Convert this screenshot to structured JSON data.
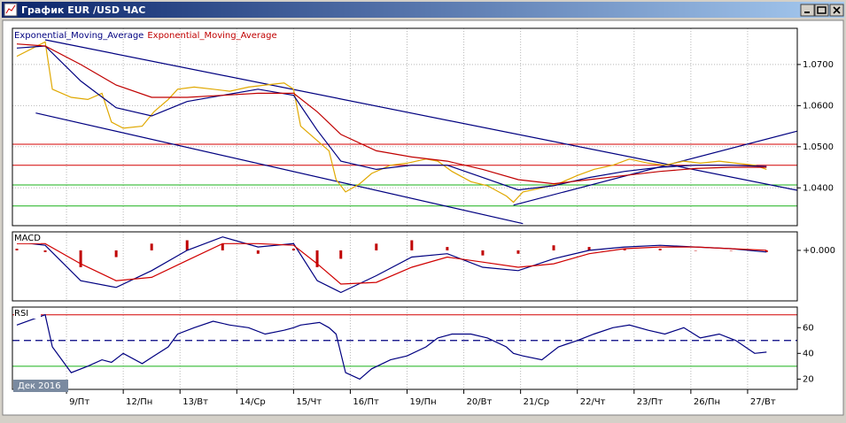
{
  "window": {
    "title": "График EUR /USD ЧАС"
  },
  "chart_data": [
    {
      "type": "line",
      "xlim": [
        0,
        333
      ],
      "ylim": [
        1.0308,
        1.0788
      ],
      "grid": true,
      "yticks": [
        {
          "value": 1.07,
          "label": "1.0700"
        },
        {
          "value": 1.06,
          "label": "1.0600"
        },
        {
          "value": 1.05,
          "label": "1.0500"
        },
        {
          "value": 1.04,
          "label": "1.0400"
        }
      ],
      "hlines": [
        {
          "value": 1.0506,
          "color": "#d40000"
        },
        {
          "value": 1.0455,
          "color": "#d40000"
        },
        {
          "value": 1.0407,
          "color": "#18b018"
        },
        {
          "value": 1.0356,
          "color": "#18b018"
        }
      ],
      "trendlines": [
        {
          "x": [
            15,
            333
          ],
          "y": [
            1.076,
            1.0394
          ],
          "color": "#000080"
        },
        {
          "x": [
            11,
            217
          ],
          "y": [
            1.0582,
            1.0313
          ],
          "color": "#000080"
        },
        {
          "x": [
            213,
            333
          ],
          "y": [
            1.0358,
            1.0538
          ],
          "color": "#000080"
        }
      ],
      "series": [
        {
          "color": "#e0a800",
          "x": [
            3,
            15,
            18,
            26,
            33,
            39,
            43,
            48,
            56,
            61,
            67,
            71,
            78,
            86,
            93,
            101,
            108,
            116,
            120,
            123,
            131,
            135,
            138,
            142,
            148,
            153,
            161,
            168,
            176,
            181,
            187,
            195,
            202,
            210,
            213,
            217,
            225,
            232,
            240,
            247,
            255,
            262,
            270,
            277,
            285,
            292,
            300,
            307,
            315,
            320
          ],
          "values": [
            1.072,
            1.0755,
            1.064,
            1.062,
            1.0615,
            1.063,
            1.056,
            1.0545,
            1.055,
            1.0585,
            1.0615,
            1.064,
            1.0645,
            1.064,
            1.0635,
            1.0645,
            1.065,
            1.0655,
            1.064,
            1.055,
            1.051,
            1.049,
            1.042,
            1.039,
            1.041,
            1.0435,
            1.0455,
            1.046,
            1.047,
            1.0465,
            1.044,
            1.0415,
            1.0405,
            1.038,
            1.0365,
            1.039,
            1.04,
            1.041,
            1.043,
            1.0445,
            1.0455,
            1.047,
            1.046,
            1.0455,
            1.0465,
            1.046,
            1.0465,
            1.046,
            1.0455,
            1.0445
          ]
        },
        {
          "name": "Exponential_Moving_Average",
          "color": "#000080",
          "x": [
            3,
            15,
            30,
            45,
            60,
            75,
            90,
            105,
            120,
            130,
            140,
            155,
            170,
            185,
            200,
            215,
            230,
            245,
            260,
            275,
            290,
            305,
            320
          ],
          "values": [
            1.074,
            1.0745,
            1.066,
            1.0595,
            1.0575,
            1.061,
            1.0625,
            1.064,
            1.0625,
            1.054,
            1.0465,
            1.0445,
            1.0455,
            1.0455,
            1.0425,
            1.0395,
            1.0405,
            1.0425,
            1.044,
            1.045,
            1.0455,
            1.0455,
            1.0452
          ]
        },
        {
          "name": "Exponential_Moving_Average",
          "color": "#c00000",
          "x": [
            3,
            15,
            30,
            45,
            60,
            75,
            90,
            105,
            120,
            130,
            140,
            155,
            170,
            185,
            200,
            215,
            230,
            245,
            260,
            275,
            290,
            305,
            320
          ],
          "values": [
            1.075,
            1.0745,
            1.07,
            1.065,
            1.062,
            1.062,
            1.0625,
            1.063,
            1.063,
            1.0585,
            1.053,
            1.049,
            1.0475,
            1.0465,
            1.0445,
            1.042,
            1.041,
            1.042,
            1.043,
            1.044,
            1.0447,
            1.045,
            1.045
          ]
        }
      ]
    },
    {
      "type": "line",
      "title": "MACD",
      "xlim": [
        0,
        333
      ],
      "ylim": [
        -0.003,
        0.0011
      ],
      "yticks": [
        {
          "value": 0,
          "label": "+0.000"
        }
      ],
      "series": [
        {
          "kind": "histogram",
          "color": "#c00000",
          "x": [
            3,
            15,
            30,
            45,
            60,
            75,
            90,
            105,
            120,
            130,
            140,
            155,
            170,
            185,
            200,
            215,
            230,
            245,
            260,
            275,
            290,
            305,
            320
          ],
          "values": [
            0.0001,
            -0.0001,
            -0.001,
            -0.0004,
            0.0004,
            0.0006,
            0.0004,
            -0.0002,
            0.0001,
            -0.001,
            -0.0005,
            0.0004,
            0.0006,
            0.0002,
            -0.0003,
            -0.0002,
            0.0003,
            0.0002,
            0.0001,
            0.0001,
            0,
            0,
            -0.0001
          ]
        },
        {
          "color": "#000080",
          "x": [
            3,
            15,
            30,
            45,
            60,
            75,
            90,
            105,
            120,
            130,
            140,
            155,
            170,
            185,
            200,
            215,
            230,
            245,
            260,
            275,
            290,
            305,
            320
          ],
          "values": [
            0.0005,
            0.0003,
            -0.0018,
            -0.0022,
            -0.0012,
            0,
            0.0008,
            0.0002,
            0.0004,
            -0.0018,
            -0.0025,
            -0.0015,
            -0.0004,
            -0.0002,
            -0.001,
            -0.0012,
            -0.0005,
            0,
            0.0002,
            0.0003,
            0.0002,
            0.0001,
            -0.0001
          ]
        },
        {
          "color": "#d00000",
          "x": [
            3,
            15,
            30,
            45,
            60,
            75,
            90,
            105,
            120,
            130,
            140,
            155,
            170,
            185,
            200,
            215,
            230,
            245,
            260,
            275,
            290,
            305,
            320
          ],
          "values": [
            0.0004,
            0.0004,
            -0.0008,
            -0.0018,
            -0.0016,
            -0.0006,
            0.0004,
            0.0004,
            0.0003,
            -0.0008,
            -0.002,
            -0.0019,
            -0.001,
            -0.0004,
            -0.0007,
            -0.001,
            -0.0008,
            -0.0002,
            0.0001,
            0.0002,
            0.0002,
            0.0001,
            0
          ]
        }
      ]
    },
    {
      "type": "line",
      "title": "RSI",
      "period_label": "Дек 2016",
      "xlim": [
        0,
        333
      ],
      "ylim": [
        12,
        76
      ],
      "yticks": [
        60,
        40,
        20
      ],
      "hlines": [
        {
          "value": 70,
          "color": "#d40000"
        },
        {
          "value": 50,
          "color": "#000080",
          "dashed": true
        },
        {
          "value": 30,
          "color": "#18b018"
        }
      ],
      "xticks": [
        {
          "value": 24,
          "label": "9/Пт"
        },
        {
          "value": 48,
          "label": "12/Пн"
        },
        {
          "value": 72,
          "label": "13/Вт"
        },
        {
          "value": 96,
          "label": "14/Ср"
        },
        {
          "value": 120,
          "label": "15/Чт"
        },
        {
          "value": 144,
          "label": "16/Пт"
        },
        {
          "value": 168,
          "label": "19/Пн"
        },
        {
          "value": 192,
          "label": "20/Вт"
        },
        {
          "value": 216,
          "label": "21/Ср"
        },
        {
          "value": 240,
          "label": "22/Чт"
        },
        {
          "value": 264,
          "label": "23/Пт"
        },
        {
          "value": 288,
          "label": "26/Пн"
        },
        {
          "value": 312,
          "label": "27/Вт"
        }
      ],
      "series": [
        {
          "color": "#000080",
          "x": [
            3,
            15,
            18,
            26,
            33,
            39,
            43,
            48,
            56,
            61,
            67,
            71,
            78,
            86,
            93,
            101,
            108,
            116,
            120,
            123,
            131,
            135,
            138,
            142,
            148,
            153,
            161,
            168,
            176,
            181,
            187,
            195,
            202,
            210,
            213,
            217,
            225,
            232,
            240,
            247,
            255,
            262,
            270,
            277,
            285,
            292,
            300,
            307,
            315,
            320
          ],
          "values": [
            62,
            70,
            45,
            25,
            30,
            35,
            33,
            40,
            32,
            38,
            45,
            55,
            60,
            65,
            62,
            60,
            55,
            58,
            60,
            62,
            64,
            60,
            55,
            25,
            20,
            28,
            35,
            38,
            45,
            52,
            55,
            55,
            52,
            45,
            40,
            38,
            35,
            45,
            50,
            55,
            60,
            62,
            58,
            55,
            60,
            52,
            55,
            50,
            40,
            41
          ]
        }
      ]
    }
  ]
}
